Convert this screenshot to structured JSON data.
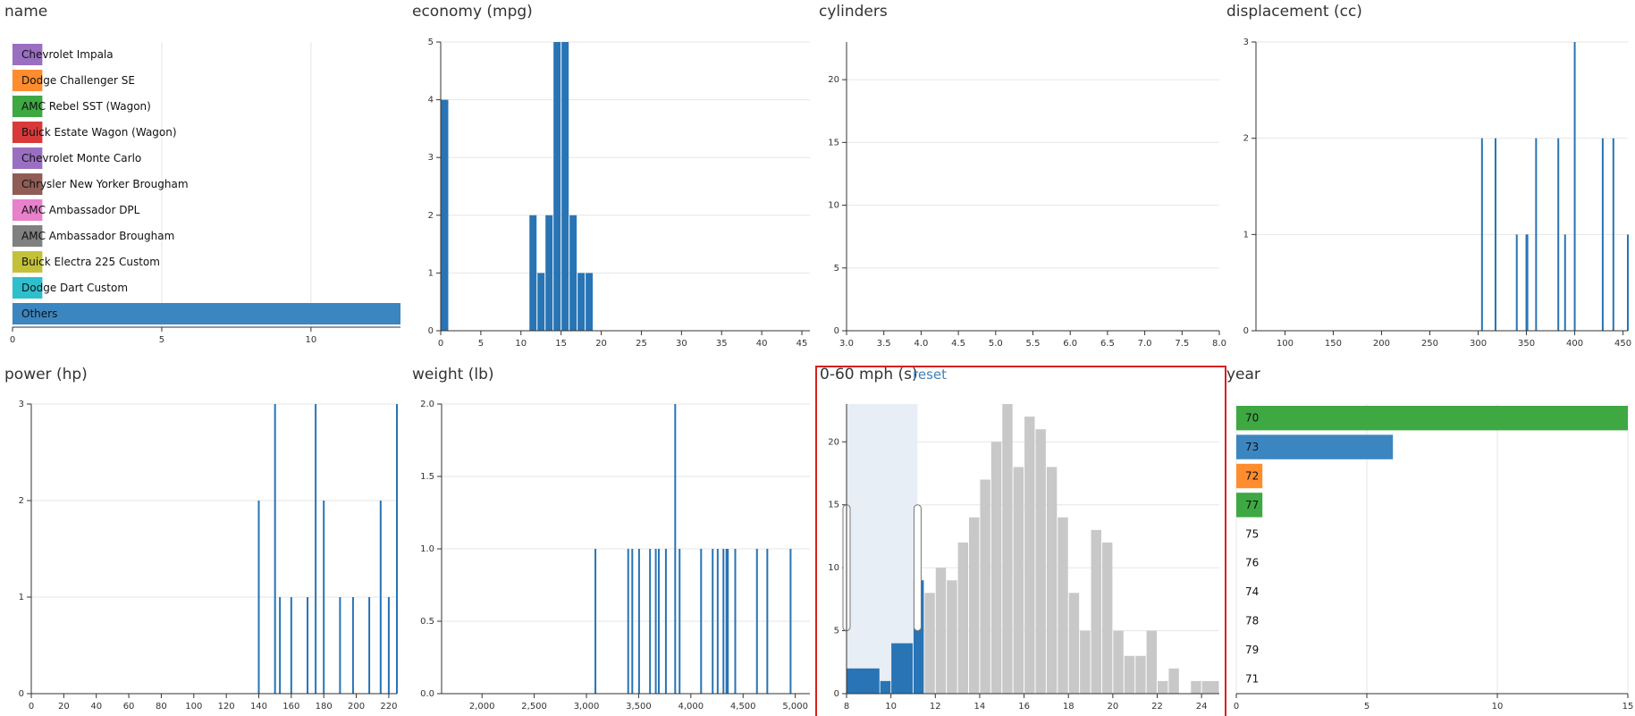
{
  "chart_data": [
    {
      "id": "name",
      "type": "bar",
      "orientation": "horizontal",
      "title": "name",
      "rows": [
        {
          "label": "Chevrolet Impala",
          "value": 1,
          "color": "#9a6fc2"
        },
        {
          "label": "Dodge Challenger SE",
          "value": 1,
          "color": "#ff8c2e"
        },
        {
          "label": "AMC Rebel SST (Wagon)",
          "value": 1,
          "color": "#3ea843"
        },
        {
          "label": "Buick Estate Wagon (Wagon)",
          "value": 1,
          "color": "#d83a3a"
        },
        {
          "label": "Chevrolet Monte Carlo",
          "value": 1,
          "color": "#9a6fc2"
        },
        {
          "label": "Chrysler New Yorker Brougham",
          "value": 1,
          "color": "#8f5d55"
        },
        {
          "label": "AMC Ambassador DPL",
          "value": 1,
          "color": "#e880cb"
        },
        {
          "label": "AMC Ambassador Brougham",
          "value": 1,
          "color": "#808080"
        },
        {
          "label": "Buick Electra 225 Custom",
          "value": 1,
          "color": "#c3c13a"
        },
        {
          "label": "Dodge Dart Custom",
          "value": 1,
          "color": "#2ebfcc"
        },
        {
          "label": "Others",
          "value": 13,
          "color": "#3b86c0"
        }
      ],
      "xlim": [
        0,
        13
      ],
      "xticks": [
        0,
        5,
        10
      ],
      "grid": true
    },
    {
      "id": "economy",
      "type": "bar",
      "title": "economy (mpg)",
      "series": [
        {
          "color": "#2874b4",
          "bars": [
            {
              "x0": 0,
              "x1": 1,
              "y": 4
            },
            {
              "x0": 11,
              "x1": 12,
              "y": 2
            },
            {
              "x0": 12,
              "x1": 13,
              "y": 1
            },
            {
              "x0": 13,
              "x1": 14,
              "y": 2
            },
            {
              "x0": 14,
              "x1": 15,
              "y": 5
            },
            {
              "x0": 15,
              "x1": 16,
              "y": 5
            },
            {
              "x0": 16,
              "x1": 17,
              "y": 2
            },
            {
              "x0": 17,
              "x1": 18,
              "y": 1
            },
            {
              "x0": 18,
              "x1": 19,
              "y": 1
            }
          ]
        }
      ],
      "xlim": [
        0,
        46
      ],
      "ylim": [
        0,
        5
      ],
      "xticks": [
        0,
        5,
        10,
        15,
        20,
        25,
        30,
        35,
        40,
        45
      ],
      "yticks": [
        0,
        1,
        2,
        3,
        4,
        5
      ],
      "grid": true
    },
    {
      "id": "cylinders",
      "type": "bar",
      "title": "cylinders",
      "series": [
        {
          "color": "#2874b4",
          "bars": []
        }
      ],
      "xlim": [
        3.0,
        8.0
      ],
      "ylim": [
        0,
        23
      ],
      "xticks": [
        "3.0",
        "3.5",
        "4.0",
        "4.5",
        "5.0",
        "5.5",
        "6.0",
        "6.5",
        "7.0",
        "7.5",
        "8.0"
      ],
      "yticks": [
        0,
        5,
        10,
        15,
        20
      ],
      "grid": true
    },
    {
      "id": "displacement",
      "type": "bar",
      "title": "displacement (cc)",
      "series": [
        {
          "color": "#2874b4",
          "thin": true,
          "bars": [
            {
              "x": 304,
              "y": 2
            },
            {
              "x": 318,
              "y": 2
            },
            {
              "x": 340,
              "y": 1
            },
            {
              "x": 350,
              "y": 1
            },
            {
              "x": 351,
              "y": 1
            },
            {
              "x": 360,
              "y": 2
            },
            {
              "x": 383,
              "y": 2
            },
            {
              "x": 390,
              "y": 1
            },
            {
              "x": 400,
              "y": 3
            },
            {
              "x": 429,
              "y": 2
            },
            {
              "x": 440,
              "y": 2
            },
            {
              "x": 455,
              "y": 1
            }
          ]
        }
      ],
      "xlim": [
        70,
        455
      ],
      "ylim": [
        0,
        3
      ],
      "xticks": [
        100,
        150,
        200,
        250,
        300,
        350,
        400,
        450
      ],
      "yticks": [
        0,
        1,
        2,
        3
      ],
      "grid": true
    },
    {
      "id": "power",
      "type": "bar",
      "title": "power (hp)",
      "series": [
        {
          "color": "#2874b4",
          "thin": true,
          "bars": [
            {
              "x": 140,
              "y": 2
            },
            {
              "x": 150,
              "y": 3
            },
            {
              "x": 153,
              "y": 1
            },
            {
              "x": 160,
              "y": 1
            },
            {
              "x": 170,
              "y": 1
            },
            {
              "x": 175,
              "y": 3
            },
            {
              "x": 180,
              "y": 2
            },
            {
              "x": 190,
              "y": 1
            },
            {
              "x": 198,
              "y": 1
            },
            {
              "x": 208,
              "y": 1
            },
            {
              "x": 215,
              "y": 2
            },
            {
              "x": 220,
              "y": 1
            },
            {
              "x": 225,
              "y": 3
            }
          ]
        }
      ],
      "xlim": [
        0,
        225
      ],
      "ylim": [
        0,
        3
      ],
      "xticks": [
        0,
        20,
        40,
        60,
        80,
        100,
        120,
        140,
        160,
        180,
        200,
        220
      ],
      "yticks": [
        0,
        1,
        2,
        3
      ],
      "grid": true
    },
    {
      "id": "weight",
      "type": "bar",
      "title": "weight (lb)",
      "series": [
        {
          "color": "#2874b4",
          "thin": true,
          "bars": [
            {
              "x": 3086,
              "y": 1
            },
            {
              "x": 3400,
              "y": 1
            },
            {
              "x": 3439,
              "y": 1
            },
            {
              "x": 3504,
              "y": 1
            },
            {
              "x": 3609,
              "y": 1
            },
            {
              "x": 3664,
              "y": 1
            },
            {
              "x": 3693,
              "y": 1
            },
            {
              "x": 3761,
              "y": 1
            },
            {
              "x": 3850,
              "y": 2
            },
            {
              "x": 3892,
              "y": 1
            },
            {
              "x": 4098,
              "y": 1
            },
            {
              "x": 4209,
              "y": 1
            },
            {
              "x": 4257,
              "y": 1
            },
            {
              "x": 4312,
              "y": 1
            },
            {
              "x": 4341,
              "y": 1
            },
            {
              "x": 4354,
              "y": 1
            },
            {
              "x": 4425,
              "y": 1
            },
            {
              "x": 4633,
              "y": 1
            },
            {
              "x": 4732,
              "y": 1
            },
            {
              "x": 4955,
              "y": 1
            }
          ]
        }
      ],
      "xlim": [
        1613,
        5140
      ],
      "ylim": [
        0,
        2.0
      ],
      "xticks": [
        "2,000",
        "2,500",
        "3,000",
        "3,500",
        "4,000",
        "4,500",
        "5,000"
      ],
      "yticks": [
        "0.0",
        "0.5",
        "1.0",
        "1.5",
        "2.0"
      ],
      "grid": true
    },
    {
      "id": "acceleration",
      "type": "bar",
      "title": "0-60 mph (s)",
      "reset_label": "reset",
      "brush": {
        "x0": 8,
        "x1": 11.2
      },
      "series": [
        {
          "name": "",
          "color": "#c8c8c8",
          "bars": [
            {
              "x0": 8.0,
              "x1": 9.5,
              "y": 2
            },
            {
              "x0": 9.5,
              "x1": 10.0,
              "y": 1
            },
            {
              "x0": 10.0,
              "x1": 11.0,
              "y": 4
            },
            {
              "x0": 11.0,
              "x1": 11.5,
              "y": 9
            },
            {
              "x0": 11.5,
              "x1": 12.0,
              "y": 8
            },
            {
              "x0": 12.0,
              "x1": 12.5,
              "y": 10
            },
            {
              "x0": 12.5,
              "x1": 13.0,
              "y": 9
            },
            {
              "x0": 13.0,
              "x1": 13.5,
              "y": 12
            },
            {
              "x0": 13.5,
              "x1": 14.0,
              "y": 14
            },
            {
              "x0": 14.0,
              "x1": 14.5,
              "y": 17
            },
            {
              "x0": 14.5,
              "x1": 15.0,
              "y": 20
            },
            {
              "x0": 15.0,
              "x1": 15.5,
              "y": 23
            },
            {
              "x0": 15.5,
              "x1": 16.0,
              "y": 18
            },
            {
              "x0": 16.0,
              "x1": 16.5,
              "y": 22
            },
            {
              "x0": 16.5,
              "x1": 17.0,
              "y": 21
            },
            {
              "x0": 17.0,
              "x1": 17.5,
              "y": 18
            },
            {
              "x0": 17.5,
              "x1": 18.0,
              "y": 14
            },
            {
              "x0": 18.0,
              "x1": 18.5,
              "y": 8
            },
            {
              "x0": 18.5,
              "x1": 19.0,
              "y": 5
            },
            {
              "x0": 19.0,
              "x1": 19.5,
              "y": 13
            },
            {
              "x0": 19.5,
              "x1": 20.0,
              "y": 12
            },
            {
              "x0": 20.0,
              "x1": 20.5,
              "y": 5
            },
            {
              "x0": 20.5,
              "x1": 21.0,
              "y": 3
            },
            {
              "x0": 21.0,
              "x1": 21.5,
              "y": 3
            },
            {
              "x0": 21.5,
              "x1": 22.0,
              "y": 5
            },
            {
              "x0": 22.0,
              "x1": 22.5,
              "y": 1
            },
            {
              "x0": 22.5,
              "x1": 23.0,
              "y": 2
            },
            {
              "x0": 23.5,
              "x1": 24.0,
              "y": 1
            },
            {
              "x0": 24.0,
              "x1": 24.8,
              "y": 1
            }
          ]
        },
        {
          "name": "",
          "color": "#2874b4",
          "bars": [
            {
              "x0": 8.0,
              "x1": 9.5,
              "y": 2
            },
            {
              "x0": 9.5,
              "x1": 10.0,
              "y": 1
            },
            {
              "x0": 10.0,
              "x1": 11.0,
              "y": 4
            },
            {
              "x0": 11.0,
              "x1": 11.5,
              "y": 9
            }
          ]
        }
      ],
      "xlim": [
        8,
        24.8
      ],
      "ylim": [
        0,
        23
      ],
      "xticks": [
        8,
        10,
        12,
        14,
        16,
        18,
        20,
        22,
        24
      ],
      "yticks": [
        0,
        5,
        10,
        15,
        20
      ],
      "grid": true
    },
    {
      "id": "year",
      "type": "bar",
      "orientation": "horizontal",
      "title": "year",
      "rows": [
        {
          "label": "70",
          "value": 15,
          "color": "#3ea843"
        },
        {
          "label": "73",
          "value": 6,
          "color": "#3b86c0"
        },
        {
          "label": "72",
          "value": 1,
          "color": "#ff8c2e"
        },
        {
          "label": "77",
          "value": 1,
          "color": "#3ea843"
        },
        {
          "label": "75",
          "value": 0,
          "color": "#9a6fc2"
        },
        {
          "label": "76",
          "value": 0,
          "color": "#9a6fc2"
        },
        {
          "label": "74",
          "value": 0,
          "color": "#9a6fc2"
        },
        {
          "label": "78",
          "value": 0,
          "color": "#9a6fc2"
        },
        {
          "label": "79",
          "value": 0,
          "color": "#9a6fc2"
        },
        {
          "label": "71",
          "value": 0,
          "color": "#9a6fc2"
        }
      ],
      "xlim": [
        0,
        15
      ],
      "xticks": [
        0,
        5,
        10,
        15
      ],
      "grid": true
    }
  ]
}
